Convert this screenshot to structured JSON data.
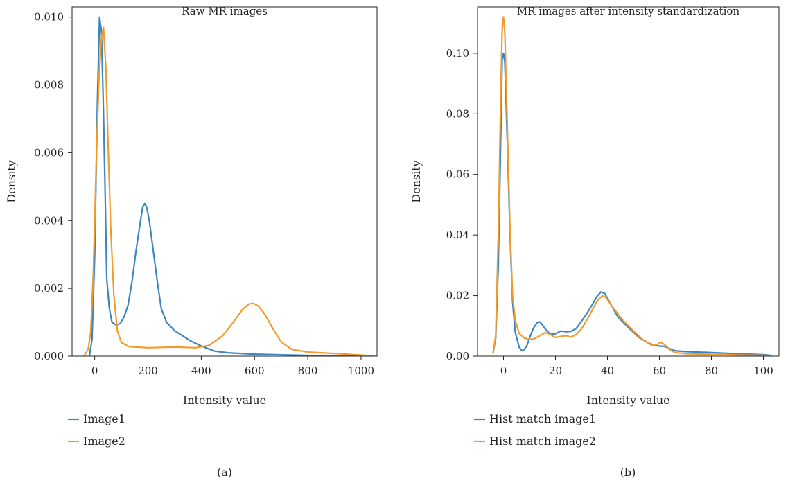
{
  "colors": {
    "series1": "#3a86c0",
    "series2": "#f39a2c"
  },
  "chart_data": [
    {
      "type": "line",
      "panel_label": "(a)",
      "title": "Raw MR images",
      "xlabel": "Intensity value",
      "ylabel": "Density",
      "xlim": [
        -85,
        1060
      ],
      "ylim": [
        0,
        0.0103
      ],
      "xticks": [
        0,
        200,
        400,
        600,
        800,
        1000
      ],
      "xtick_labels": [
        "0",
        "200",
        "400",
        "600",
        "800",
        "1000"
      ],
      "yticks": [
        0,
        0.002,
        0.004,
        0.006,
        0.008,
        0.01
      ],
      "ytick_labels": [
        "0.000",
        "0.002",
        "0.004",
        "0.006",
        "0.008",
        "0.010"
      ],
      "grid": false,
      "legend": "bottom-left, below plot",
      "series": [
        {
          "name": "Image1",
          "color": "#3a86c0",
          "points": [
            [
              -20,
              0
            ],
            [
              -10,
              0.0005
            ],
            [
              0,
              0.003
            ],
            [
              10,
              0.0075
            ],
            [
              18,
              0.01
            ],
            [
              25,
              0.0096
            ],
            [
              32,
              0.0075
            ],
            [
              40,
              0.0045
            ],
            [
              45,
              0.0023
            ],
            [
              55,
              0.0014
            ],
            [
              65,
              0.001
            ],
            [
              80,
              0.00092
            ],
            [
              95,
              0.00096
            ],
            [
              110,
              0.00115
            ],
            [
              125,
              0.0015
            ],
            [
              140,
              0.0022
            ],
            [
              155,
              0.0031
            ],
            [
              170,
              0.0039
            ],
            [
              180,
              0.0044
            ],
            [
              188,
              0.0045
            ],
            [
              195,
              0.0044
            ],
            [
              205,
              0.004
            ],
            [
              220,
              0.0031
            ],
            [
              235,
              0.0022
            ],
            [
              250,
              0.0014
            ],
            [
              270,
              0.001
            ],
            [
              300,
              0.00075
            ],
            [
              330,
              0.0006
            ],
            [
              360,
              0.00045
            ],
            [
              400,
              0.0003
            ],
            [
              450,
              0.00015
            ],
            [
              500,
              0.0001
            ],
            [
              600,
              6e-05
            ],
            [
              800,
              2e-05
            ],
            [
              1000,
              5e-06
            ],
            [
              1050,
              0
            ]
          ]
        },
        {
          "name": "Image2",
          "color": "#f39a2c",
          "points": [
            [
              -40,
              0
            ],
            [
              -25,
              0.0002
            ],
            [
              -15,
              0.0007
            ],
            [
              -5,
              0.0025
            ],
            [
              5,
              0.0055
            ],
            [
              15,
              0.008
            ],
            [
              25,
              0.0094
            ],
            [
              33,
              0.0097
            ],
            [
              42,
              0.0085
            ],
            [
              50,
              0.0063
            ],
            [
              60,
              0.0038
            ],
            [
              72,
              0.0018
            ],
            [
              85,
              0.00075
            ],
            [
              100,
              0.0004
            ],
            [
              130,
              0.00028
            ],
            [
              200,
              0.00025
            ],
            [
              300,
              0.00027
            ],
            [
              380,
              0.00025
            ],
            [
              430,
              0.00032
            ],
            [
              480,
              0.0006
            ],
            [
              520,
              0.001
            ],
            [
              555,
              0.00138
            ],
            [
              580,
              0.00154
            ],
            [
              595,
              0.00156
            ],
            [
              615,
              0.00148
            ],
            [
              640,
              0.00122
            ],
            [
              670,
              0.0008
            ],
            [
              700,
              0.00042
            ],
            [
              740,
              0.0002
            ],
            [
              800,
              0.00012
            ],
            [
              900,
              8e-05
            ],
            [
              1000,
              3e-05
            ],
            [
              1050,
              0
            ]
          ]
        }
      ]
    },
    {
      "type": "line",
      "panel_label": "(b)",
      "title": "MR images after intensity standardization",
      "xlabel": "Intensity value",
      "ylabel": "Density",
      "xlim": [
        -10,
        106
      ],
      "ylim": [
        0,
        0.1153
      ],
      "xticks": [
        0,
        20,
        40,
        60,
        80,
        100
      ],
      "xtick_labels": [
        "0",
        "20",
        "40",
        "60",
        "80",
        "100"
      ],
      "yticks": [
        0,
        0.02,
        0.04,
        0.06,
        0.08,
        0.1
      ],
      "ytick_labels": [
        "0.00",
        "0.02",
        "0.04",
        "0.06",
        "0.08",
        "0.10"
      ],
      "grid": false,
      "legend": "bottom-left, below plot",
      "series": [
        {
          "name": "Hist match image1",
          "color": "#3a86c0",
          "points": [
            [
              -4,
              0.001
            ],
            [
              -3,
              0.006
            ],
            [
              -2,
              0.03
            ],
            [
              -1,
              0.075
            ],
            [
              -0.5,
              0.098
            ],
            [
              0,
              0.1
            ],
            [
              0.5,
              0.097
            ],
            [
              1.5,
              0.07
            ],
            [
              2.5,
              0.04
            ],
            [
              3.5,
              0.018
            ],
            [
              4.5,
              0.008
            ],
            [
              6,
              0.003
            ],
            [
              7,
              0.0018
            ],
            [
              8,
              0.0022
            ],
            [
              9,
              0.0035
            ],
            [
              10,
              0.006
            ],
            [
              11.5,
              0.0092
            ],
            [
              13,
              0.0112
            ],
            [
              14,
              0.0113
            ],
            [
              15,
              0.0103
            ],
            [
              16.5,
              0.0085
            ],
            [
              18,
              0.0073
            ],
            [
              20,
              0.0074
            ],
            [
              22,
              0.0083
            ],
            [
              24,
              0.0081
            ],
            [
              26,
              0.0082
            ],
            [
              28,
              0.0092
            ],
            [
              30,
              0.0115
            ],
            [
              32,
              0.014
            ],
            [
              34,
              0.0168
            ],
            [
              36,
              0.0198
            ],
            [
              37.5,
              0.0212
            ],
            [
              39,
              0.0207
            ],
            [
              41,
              0.0175
            ],
            [
              44,
              0.013
            ],
            [
              48,
              0.0095
            ],
            [
              52,
              0.0063
            ],
            [
              56,
              0.0042
            ],
            [
              59,
              0.0034
            ],
            [
              62,
              0.0032
            ],
            [
              66,
              0.0018
            ],
            [
              70,
              0.0015
            ],
            [
              80,
              0.0012
            ],
            [
              90,
              0.0008
            ],
            [
              100,
              0.0005
            ],
            [
              103,
              0.0002
            ]
          ]
        },
        {
          "name": "Hist match image2",
          "color": "#f39a2c",
          "points": [
            [
              -4,
              0.001
            ],
            [
              -3,
              0.007
            ],
            [
              -2,
              0.04
            ],
            [
              -1,
              0.09
            ],
            [
              -0.5,
              0.108
            ],
            [
              0,
              0.112
            ],
            [
              0.5,
              0.107
            ],
            [
              1.5,
              0.075
            ],
            [
              2.5,
              0.042
            ],
            [
              3.5,
              0.02
            ],
            [
              4.5,
              0.012
            ],
            [
              6,
              0.0075
            ],
            [
              8,
              0.006
            ],
            [
              10,
              0.0055
            ],
            [
              12,
              0.0058
            ],
            [
              14,
              0.0068
            ],
            [
              16,
              0.0078
            ],
            [
              18,
              0.0072
            ],
            [
              20,
              0.0062
            ],
            [
              22,
              0.0065
            ],
            [
              24,
              0.0068
            ],
            [
              26,
              0.0063
            ],
            [
              28,
              0.0072
            ],
            [
              30,
              0.009
            ],
            [
              32,
              0.0118
            ],
            [
              34,
              0.015
            ],
            [
              36,
              0.0182
            ],
            [
              38,
              0.02
            ],
            [
              39.5,
              0.0193
            ],
            [
              42,
              0.0162
            ],
            [
              46,
              0.0118
            ],
            [
              50,
              0.0083
            ],
            [
              54,
              0.0052
            ],
            [
              57,
              0.0036
            ],
            [
              59,
              0.0038
            ],
            [
              60.5,
              0.0046
            ],
            [
              62,
              0.0038
            ],
            [
              64,
              0.0022
            ],
            [
              66,
              0.0012
            ],
            [
              70,
              0.0008
            ],
            [
              80,
              0.0006
            ],
            [
              90,
              0.0004
            ],
            [
              100,
              0.0003
            ],
            [
              103,
              0.0001
            ]
          ]
        }
      ]
    }
  ]
}
